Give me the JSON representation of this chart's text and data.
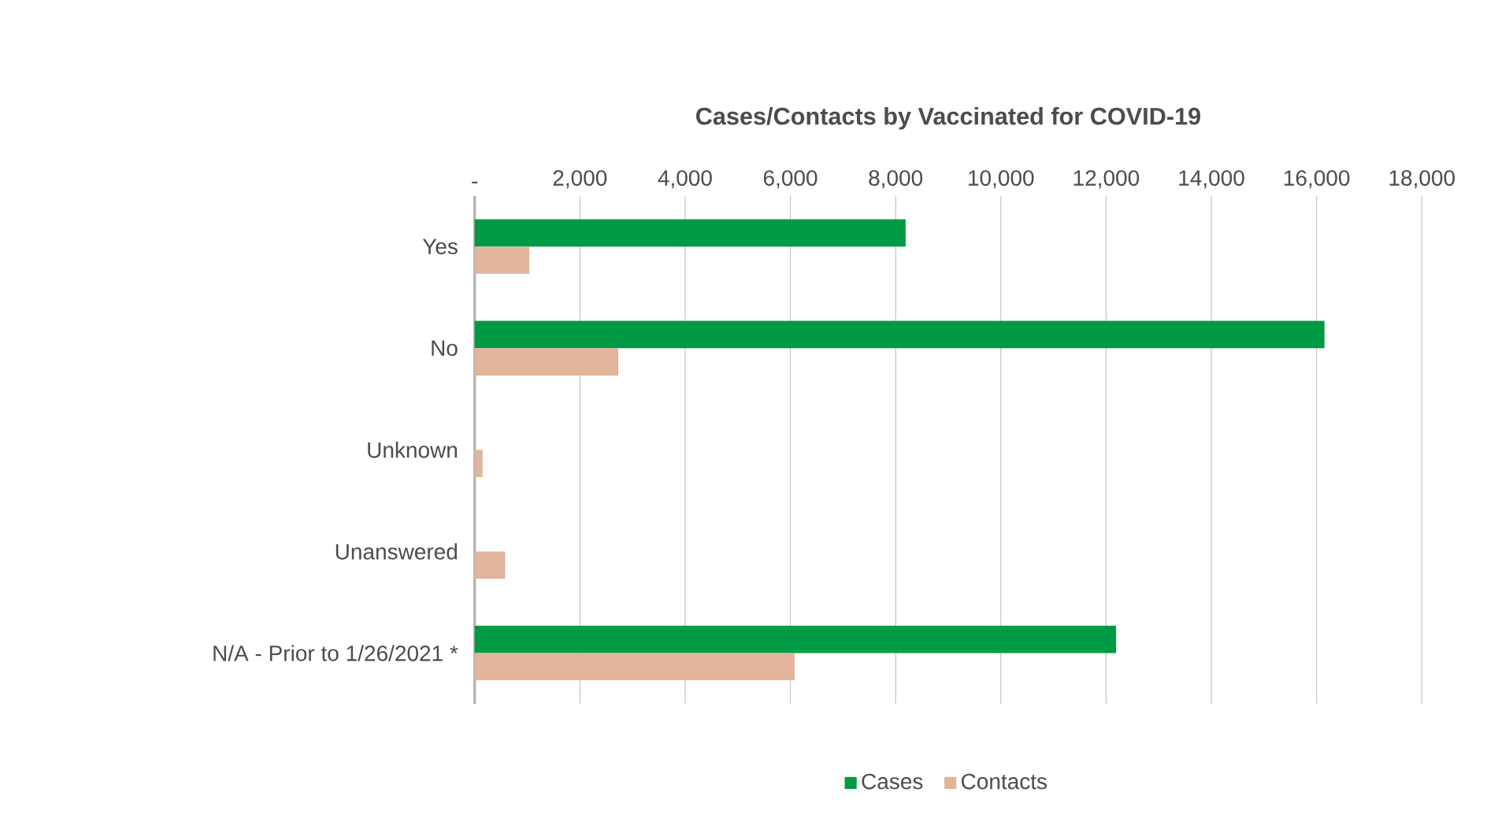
{
  "chart_data": {
    "type": "bar",
    "orientation": "horizontal",
    "title": "Cases/Contacts by Vaccinated for COVID-19",
    "categories": [
      "Yes",
      "No",
      "Unknown",
      "Unanswered",
      "N/A - Prior to 1/26/2021 *"
    ],
    "series": [
      {
        "name": "Cases",
        "color": "#009a44",
        "values": [
          8190,
          16150,
          null,
          null,
          12190
        ]
      },
      {
        "name": "Contacts",
        "color": "#e0b59c",
        "values": [
          1040,
          2730,
          150,
          580,
          6080
        ]
      }
    ],
    "xlim": [
      0,
      18000
    ],
    "xticks": [
      {
        "value": 0,
        "label": "-"
      },
      {
        "value": 2000,
        "label": "2,000"
      },
      {
        "value": 4000,
        "label": "4,000"
      },
      {
        "value": 6000,
        "label": "6,000"
      },
      {
        "value": 8000,
        "label": "8,000"
      },
      {
        "value": 10000,
        "label": "10,000"
      },
      {
        "value": 12000,
        "label": "12,000"
      },
      {
        "value": 14000,
        "label": "14,000"
      },
      {
        "value": 16000,
        "label": "16,000"
      },
      {
        "value": 18000,
        "label": "18,000"
      }
    ],
    "grid": "x",
    "legend": "bottom"
  }
}
